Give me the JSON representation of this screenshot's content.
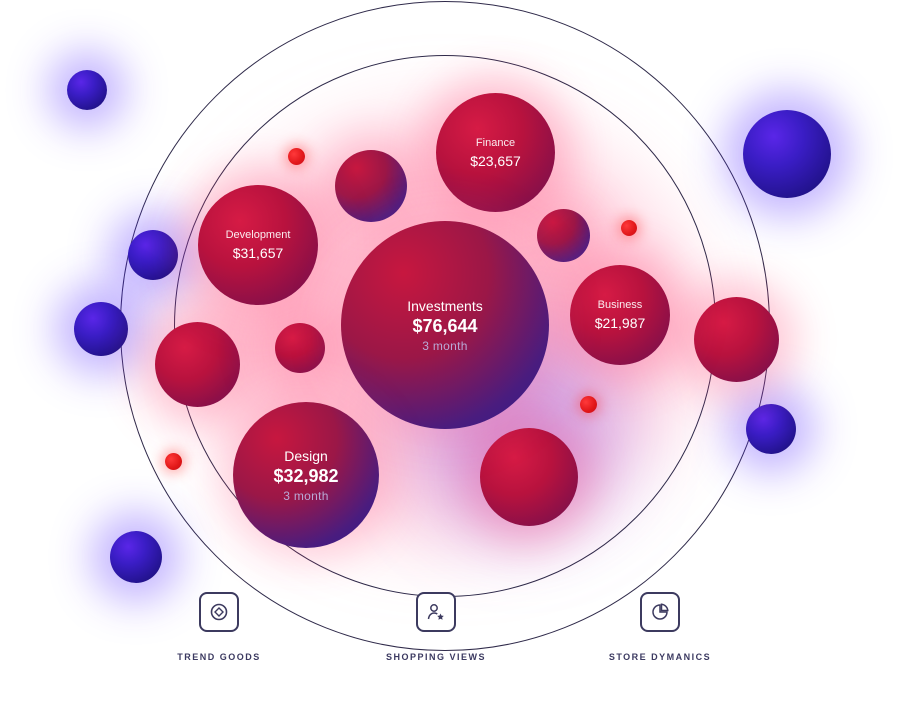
{
  "bubbles": {
    "investments": {
      "label": "Investments",
      "value": "$76,644",
      "period": "3 month"
    },
    "design": {
      "label": "Design",
      "value": "$32,982",
      "period": "3 month"
    },
    "development": {
      "label": "Development",
      "value": "$31,657"
    },
    "finance": {
      "label": "Finance",
      "value": "$23,657"
    },
    "business": {
      "label": "Business",
      "value": "$21,987"
    }
  },
  "nav": [
    {
      "label": "TREND GOODS",
      "icon": "diamond-target-icon"
    },
    {
      "label": "SHOPPING VIEWS",
      "icon": "user-star-icon"
    },
    {
      "label": "STORE DYMANICS",
      "icon": "pie-chart-icon"
    }
  ],
  "colors": {
    "red_bubble": "#b8123e",
    "blue_bubble": "#23138f",
    "accent_dot": "#e01717",
    "ring": "#2f2a4a",
    "nav_text": "#3b3960"
  }
}
